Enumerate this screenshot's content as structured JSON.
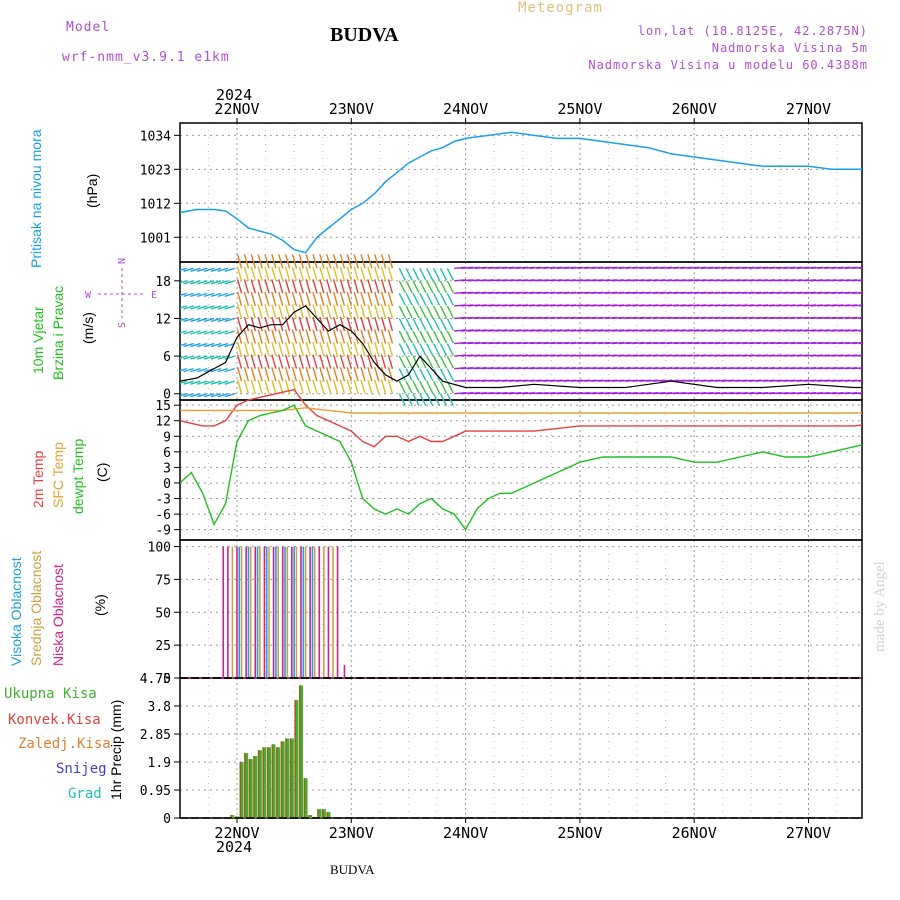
{
  "header": {
    "model_label": "Model",
    "model_name": "wrf-nmm_v3.9.1 e1km",
    "station": "BUDVA",
    "product": "Meteogram",
    "lonlat": "lon,lat (18.8125E, 42.2875N)",
    "elevation": "Nadmorska Visina 5m",
    "model_elevation": "Nadmorska Visina u modelu 60.4388m",
    "footer_station": "BUDVA",
    "credit": "made by Angel"
  },
  "colors": {
    "model": "#b04fd0",
    "product": "#e0c080",
    "pressure": "#1aa0e8",
    "temp2m": "#e84040",
    "sfc": "#e8a030",
    "dew": "#20c020",
    "cloud_high": "#20a0e0",
    "cloud_mid": "#d0a040",
    "cloud_low": "#d0208a",
    "precip_total": "#40b030",
    "precip_conv": "#e04040",
    "precip_frz": "#e08030",
    "snow": "#4040d0",
    "grad": "#20c0b0"
  },
  "chart_data": [
    {
      "id": "pressure",
      "type": "line",
      "ylabel": [
        "Pritisak na nivou mora",
        "(hPa)"
      ],
      "ylim": [
        993,
        1038
      ],
      "yticks": [
        1001,
        1012,
        1023,
        1034
      ],
      "x_dates": [
        "22NOV",
        "23NOV",
        "24NOV",
        "25NOV",
        "26NOV",
        "27NOV"
      ],
      "year": "2024",
      "grid": true,
      "series": [
        {
          "x": [
            -0.5,
            -0.35,
            -0.2,
            -0.1,
            0.0,
            0.1,
            0.2,
            0.3,
            0.4,
            0.5,
            0.6,
            0.7,
            0.8,
            0.9,
            1.0,
            1.1,
            1.2,
            1.3,
            1.4,
            1.5,
            1.6,
            1.7,
            1.8,
            1.9,
            2.0,
            2.2,
            2.4,
            2.6,
            2.8,
            3.0,
            3.2,
            3.4,
            3.6,
            3.8,
            4.0,
            4.2,
            4.4,
            4.6,
            4.8,
            5.0,
            5.2,
            5.4,
            5.6,
            5.8,
            6.0,
            6.2,
            6.3,
            6.45,
            6.5
          ],
          "y": [
            1009,
            1010,
            1010,
            1009.5,
            1007,
            1004,
            1003,
            1002,
            1000,
            997,
            996,
            1001,
            1004,
            1007,
            1010,
            1012,
            1015,
            1019,
            1022,
            1025,
            1027,
            1029,
            1030,
            1032,
            1033,
            1034,
            1035,
            1034,
            1033,
            1033,
            1032,
            1031,
            1030,
            1028,
            1027,
            1026,
            1025,
            1024,
            1024,
            1024,
            1023,
            1023,
            1023,
            1024,
            1023,
            1023,
            1024,
            1023,
            1023
          ]
        }
      ]
    },
    {
      "id": "wind",
      "type": "line",
      "ylabel": [
        "10m Vjetar",
        "Brzina i Pravac",
        "(m/s)"
      ],
      "compass": {
        "n": "N",
        "e": "E",
        "w": "W",
        "s": "S"
      },
      "ylim": [
        -1,
        21
      ],
      "yticks": [
        0,
        6,
        12,
        18
      ],
      "grid": true,
      "series": [
        {
          "name": "speed",
          "x": [
            -0.5,
            -0.35,
            -0.2,
            -0.1,
            0.0,
            0.1,
            0.2,
            0.3,
            0.4,
            0.5,
            0.6,
            0.7,
            0.8,
            0.9,
            1.0,
            1.1,
            1.2,
            1.3,
            1.4,
            1.5,
            1.6,
            1.7,
            1.8,
            2.0,
            2.3,
            2.6,
            3.0,
            3.4,
            3.8,
            4.2,
            4.6,
            5.0,
            5.4,
            5.8,
            6.2,
            6.5
          ],
          "y": [
            2,
            2.5,
            4,
            5,
            9,
            11,
            10.5,
            11,
            11,
            13,
            14,
            12,
            10,
            11,
            10,
            8,
            5,
            3,
            2,
            3,
            6,
            4,
            2,
            1,
            1,
            1.5,
            1,
            1,
            2,
            1,
            1,
            1.5,
            1,
            1,
            1,
            1
          ]
        }
      ]
    },
    {
      "id": "temperature",
      "type": "line",
      "ylabel": [
        "2m Temp",
        "SFC Temp",
        "dewpt Temp",
        "(C)"
      ],
      "ylim": [
        -11,
        16
      ],
      "yticks": [
        -9,
        -6,
        -3,
        0,
        3,
        6,
        9,
        12,
        15
      ],
      "grid": true,
      "series": [
        {
          "name": "2m",
          "x": [
            -0.5,
            -0.3,
            -0.2,
            -0.1,
            0.0,
            0.1,
            0.2,
            0.3,
            0.4,
            0.5,
            0.6,
            0.7,
            0.8,
            0.9,
            1.0,
            1.1,
            1.2,
            1.3,
            1.4,
            1.5,
            1.6,
            1.7,
            1.8,
            1.9,
            2.0,
            2.3,
            2.6,
            3.0,
            3.4,
            3.8,
            4.2,
            4.6,
            5.0,
            5.4,
            5.8,
            6.2,
            6.5
          ],
          "y": [
            12,
            11,
            11,
            12,
            15,
            16,
            16.5,
            17,
            17.5,
            18,
            15,
            13,
            12,
            11,
            10,
            8,
            7,
            9,
            9,
            8,
            9,
            8,
            8,
            9,
            10,
            10,
            10,
            11,
            11,
            11,
            11,
            11,
            11,
            11,
            12,
            12,
            12
          ]
        },
        {
          "name": "SFC",
          "x": [
            -0.5,
            -0.2,
            0.0,
            0.2,
            0.4,
            0.6,
            0.8,
            1.0,
            1.4,
            1.8,
            2.2,
            2.6,
            3.0,
            3.4,
            3.8,
            4.2,
            4.6,
            5.0,
            5.4,
            5.8,
            6.2,
            6.5
          ],
          "y": [
            14,
            14,
            14,
            14,
            14,
            14.5,
            14,
            13.5,
            13.5,
            13.5,
            13.5,
            13.5,
            13.5,
            13.5,
            13.5,
            13.5,
            13.5,
            13.5,
            13.5,
            13.5,
            14,
            14
          ]
        },
        {
          "name": "dew",
          "x": [
            -0.5,
            -0.4,
            -0.3,
            -0.2,
            -0.1,
            0.0,
            0.1,
            0.2,
            0.3,
            0.4,
            0.5,
            0.6,
            0.7,
            0.8,
            0.9,
            1.0,
            1.1,
            1.2,
            1.3,
            1.4,
            1.5,
            1.6,
            1.7,
            1.8,
            1.9,
            2.0,
            2.1,
            2.2,
            2.3,
            2.4,
            2.6,
            2.8,
            3.0,
            3.2,
            3.4,
            3.6,
            3.8,
            4.0,
            4.2,
            4.4,
            4.6,
            4.8,
            5.0,
            5.2,
            5.4,
            5.6,
            5.8,
            6.0,
            6.2,
            6.4,
            6.5
          ],
          "y": [
            0,
            2,
            -2,
            -8,
            -4,
            8,
            12,
            13,
            13.5,
            14,
            15,
            11,
            10,
            9,
            8,
            4,
            -3,
            -5,
            -6,
            -5,
            -6,
            -4,
            -3,
            -5,
            -6,
            -9,
            -5,
            -3,
            -2,
            -2,
            0,
            2,
            4,
            5,
            5,
            5,
            5,
            4,
            4,
            5,
            6,
            5,
            5,
            6,
            7,
            8,
            10,
            9,
            7,
            8,
            10
          ]
        }
      ]
    },
    {
      "id": "cloud",
      "type": "bar",
      "ylabel": [
        "Visoka Oblacnost",
        "Srednja Oblacnost",
        "Niska Oblacnost",
        "(%)"
      ],
      "ylim": [
        0,
        105
      ],
      "yticks": [
        0,
        25,
        50,
        75,
        100
      ],
      "grid": true,
      "series": [
        {
          "name": "low",
          "x": [
            -0.12,
            -0.08,
            0.0,
            0.08,
            0.16,
            0.24,
            0.32,
            0.4,
            0.48,
            0.56,
            0.64,
            0.72,
            0.8,
            0.88,
            0.94
          ],
          "values": [
            100,
            100,
            100,
            100,
            100,
            100,
            100,
            100,
            100,
            100,
            100,
            100,
            100,
            100,
            10
          ]
        },
        {
          "name": "mid",
          "x": [
            -0.04,
            0.04,
            0.12,
            0.2,
            0.28,
            0.36,
            0.44,
            0.52,
            0.6,
            0.68,
            0.76,
            0.84
          ],
          "values": [
            100,
            100,
            100,
            100,
            100,
            100,
            100,
            100,
            100,
            100,
            100,
            100
          ]
        },
        {
          "name": "high",
          "x": [
            0.02,
            0.1,
            0.18,
            0.26,
            0.34,
            0.42,
            0.5,
            0.58,
            0.66
          ],
          "values": [
            100,
            100,
            100,
            100,
            100,
            100,
            100,
            100,
            100
          ]
        }
      ]
    },
    {
      "id": "precip",
      "type": "bar",
      "ylabel": [
        "1hr Precip (mm)"
      ],
      "legend": [
        "Ukupna Kisa",
        "Konvek.Kisa",
        "Zaledj.Kisa",
        "Snijeg",
        "Grad"
      ],
      "ylim": [
        0,
        4.75
      ],
      "yticks": [
        0,
        0.95,
        1.9,
        2.85,
        3.8,
        4.75
      ],
      "ytick_labels": [
        "0",
        "0.95",
        "1.9",
        "2.85",
        "3.8",
        "4.75"
      ],
      "grid": true,
      "series": [
        {
          "name": "total",
          "x": [
            -0.04,
            0.0,
            0.04,
            0.08,
            0.12,
            0.16,
            0.2,
            0.24,
            0.28,
            0.32,
            0.36,
            0.4,
            0.44,
            0.48,
            0.52,
            0.56,
            0.6,
            0.64,
            0.72,
            0.76,
            0.8
          ],
          "values": [
            0.1,
            0.05,
            1.9,
            2.2,
            2.0,
            2.1,
            2.3,
            2.4,
            2.4,
            2.5,
            2.4,
            2.6,
            2.7,
            2.7,
            4.0,
            4.5,
            1.35,
            0.1,
            0.3,
            0.3,
            0.2
          ]
        }
      ]
    }
  ]
}
